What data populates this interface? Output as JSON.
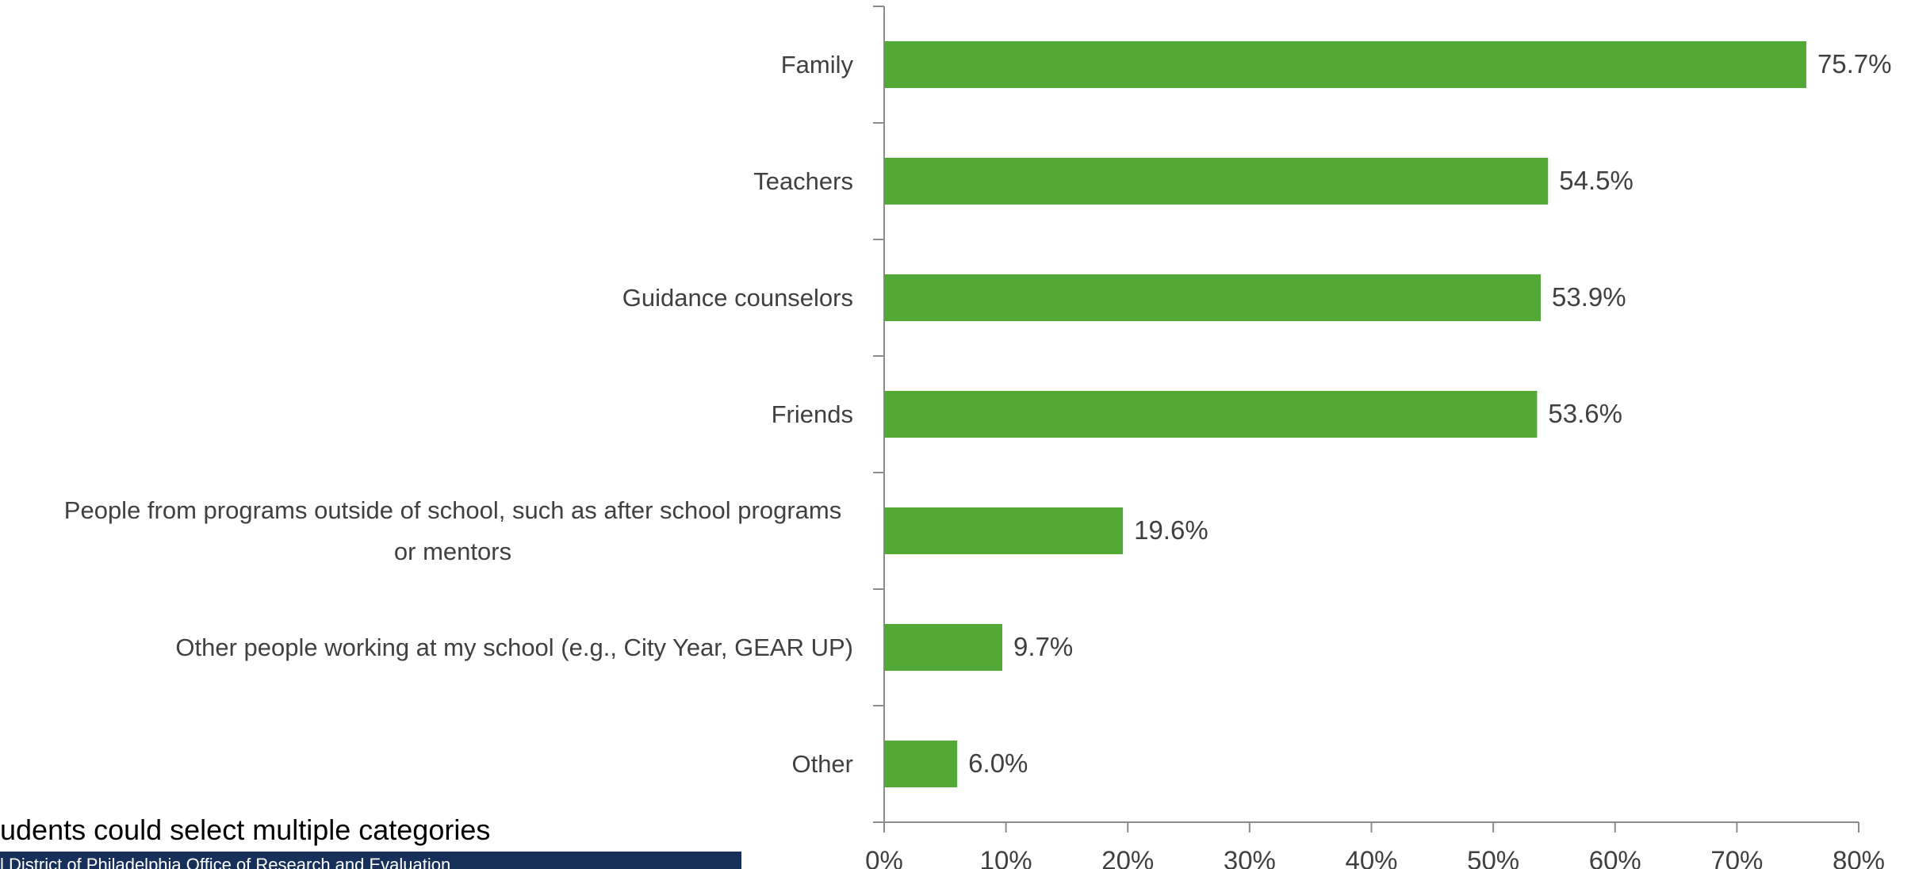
{
  "chart_data": {
    "type": "barh",
    "categories": [
      "Family",
      "Teachers",
      "Guidance counselors",
      "Friends",
      "People from programs outside of school, such as after school programs or mentors",
      "Other people working at my school (e.g., City Year, GEAR UP)",
      "Other"
    ],
    "values": [
      75.7,
      54.5,
      53.9,
      53.6,
      19.6,
      9.7,
      6.0
    ],
    "value_labels": [
      "75.7%",
      "54.5%",
      "53.9%",
      "53.6%",
      "19.6%",
      "9.7%",
      "6.0%"
    ],
    "color": "#52a936",
    "xlim": [
      0,
      80
    ],
    "xticks": [
      {
        "value": 0,
        "label": "0%"
      },
      {
        "value": 10,
        "label": "10%"
      },
      {
        "value": 20,
        "label": "20%"
      },
      {
        "value": 30,
        "label": "30%"
      },
      {
        "value": 40,
        "label": "40%"
      },
      {
        "value": 50,
        "label": "50%"
      },
      {
        "value": 60,
        "label": "60%"
      },
      {
        "value": 70,
        "label": "70%"
      },
      {
        "value": 80,
        "label": "80%"
      }
    ],
    "footnote": "udents could select multiple categories",
    "source": "l District of Philadelphia Office of Research and Evaluation"
  }
}
